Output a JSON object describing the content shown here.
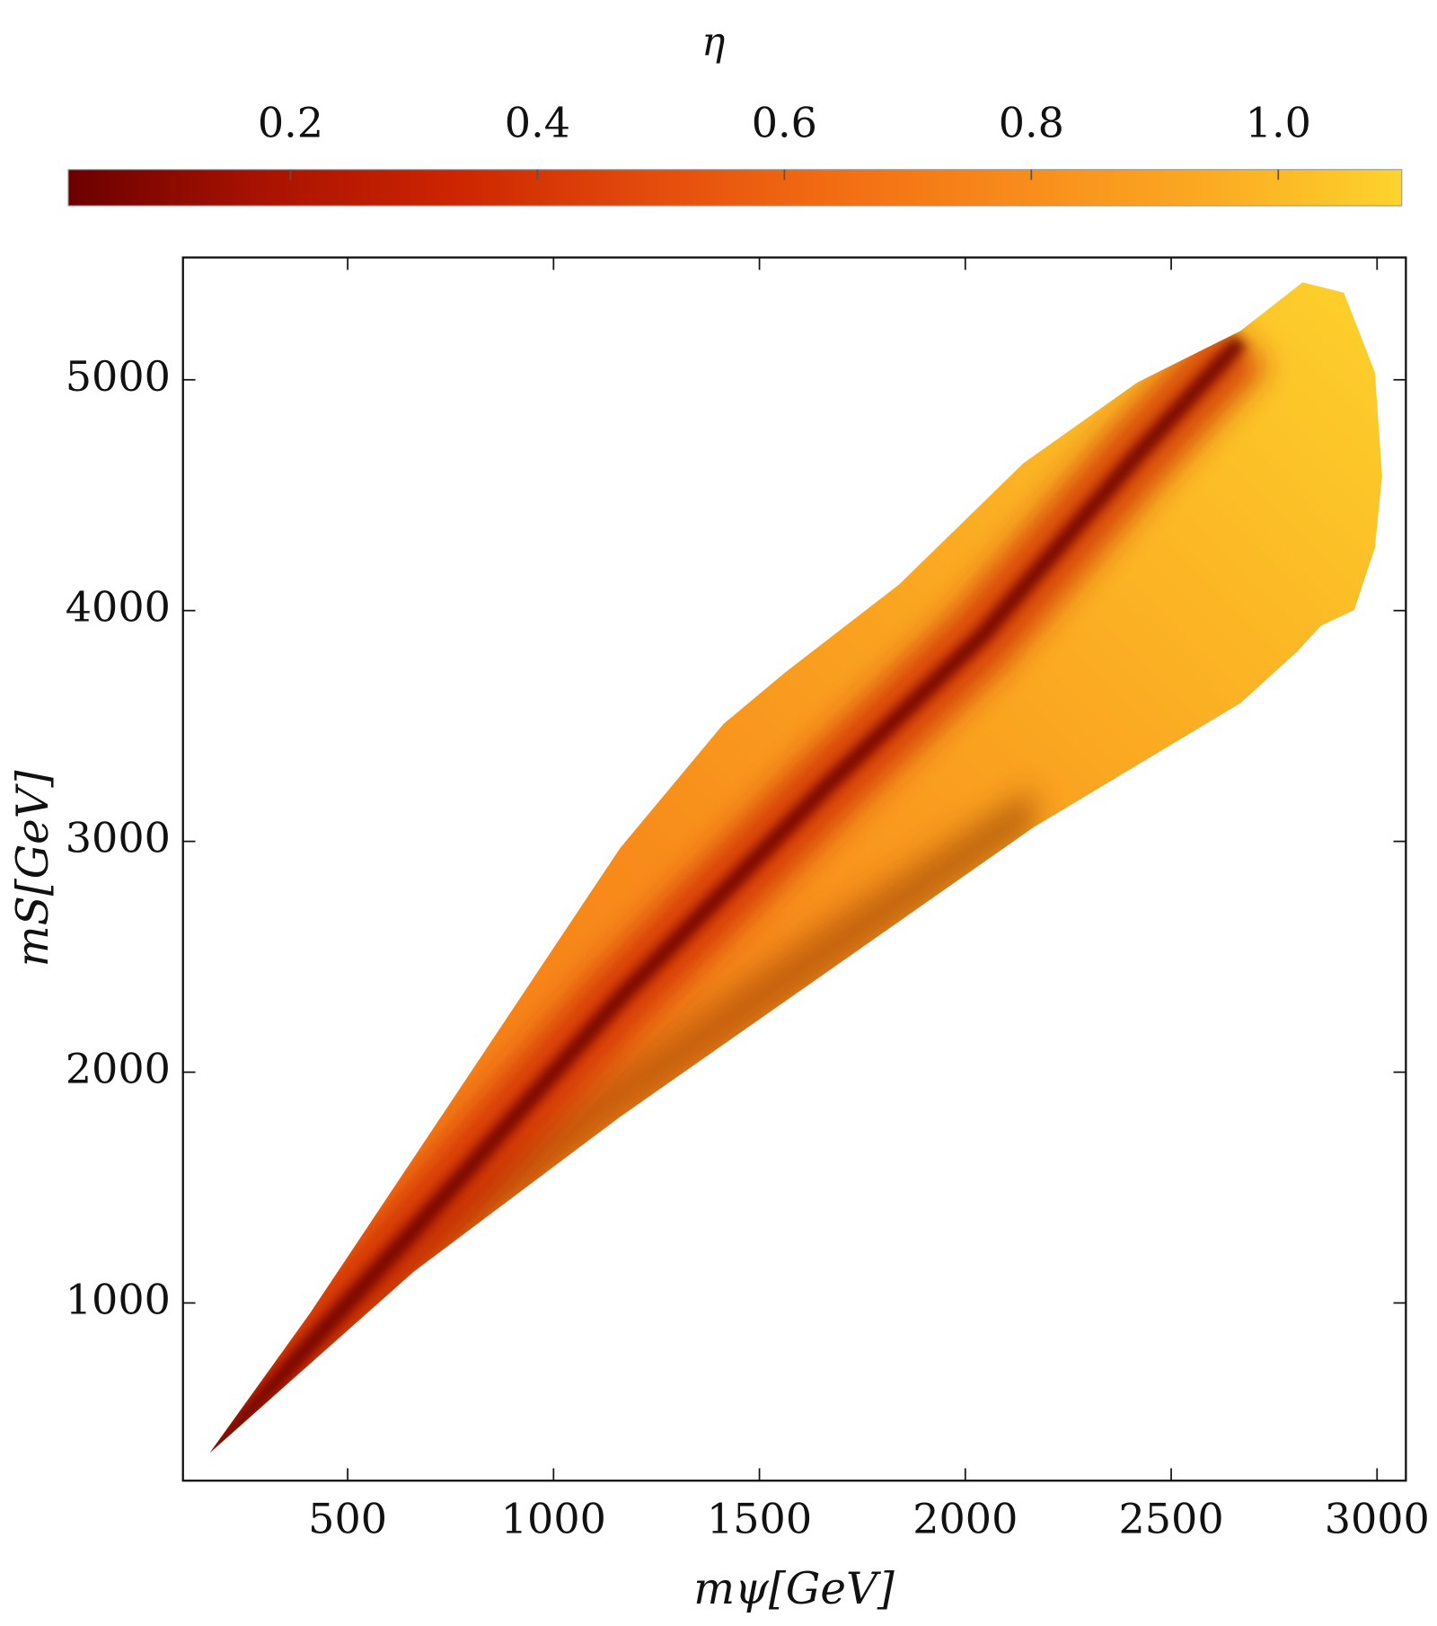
{
  "chart_data": {
    "type": "heatmap",
    "xlabel": "mψ[GeV]",
    "ylabel": "mS[GeV]",
    "xlim": [
      100,
      3070
    ],
    "xticks": [
      500,
      1000,
      1500,
      2000,
      2500,
      3000
    ],
    "ylim": [
      230,
      5530
    ],
    "yticks": [
      1000,
      2000,
      3000,
      4000,
      5000
    ],
    "colorbar": {
      "title": "η",
      "lim": [
        0.02,
        1.1
      ],
      "ticks": [
        0.2,
        0.4,
        0.6,
        0.8,
        {
          "value": 1,
          "label": "1.0"
        }
      ],
      "colors": [
        "#6b0000",
        "#a81200",
        "#cc2400",
        "#e24a0c",
        "#f26c12",
        "#f88c1b",
        "#fbab22",
        "#fdd42c"
      ]
    }
  }
}
